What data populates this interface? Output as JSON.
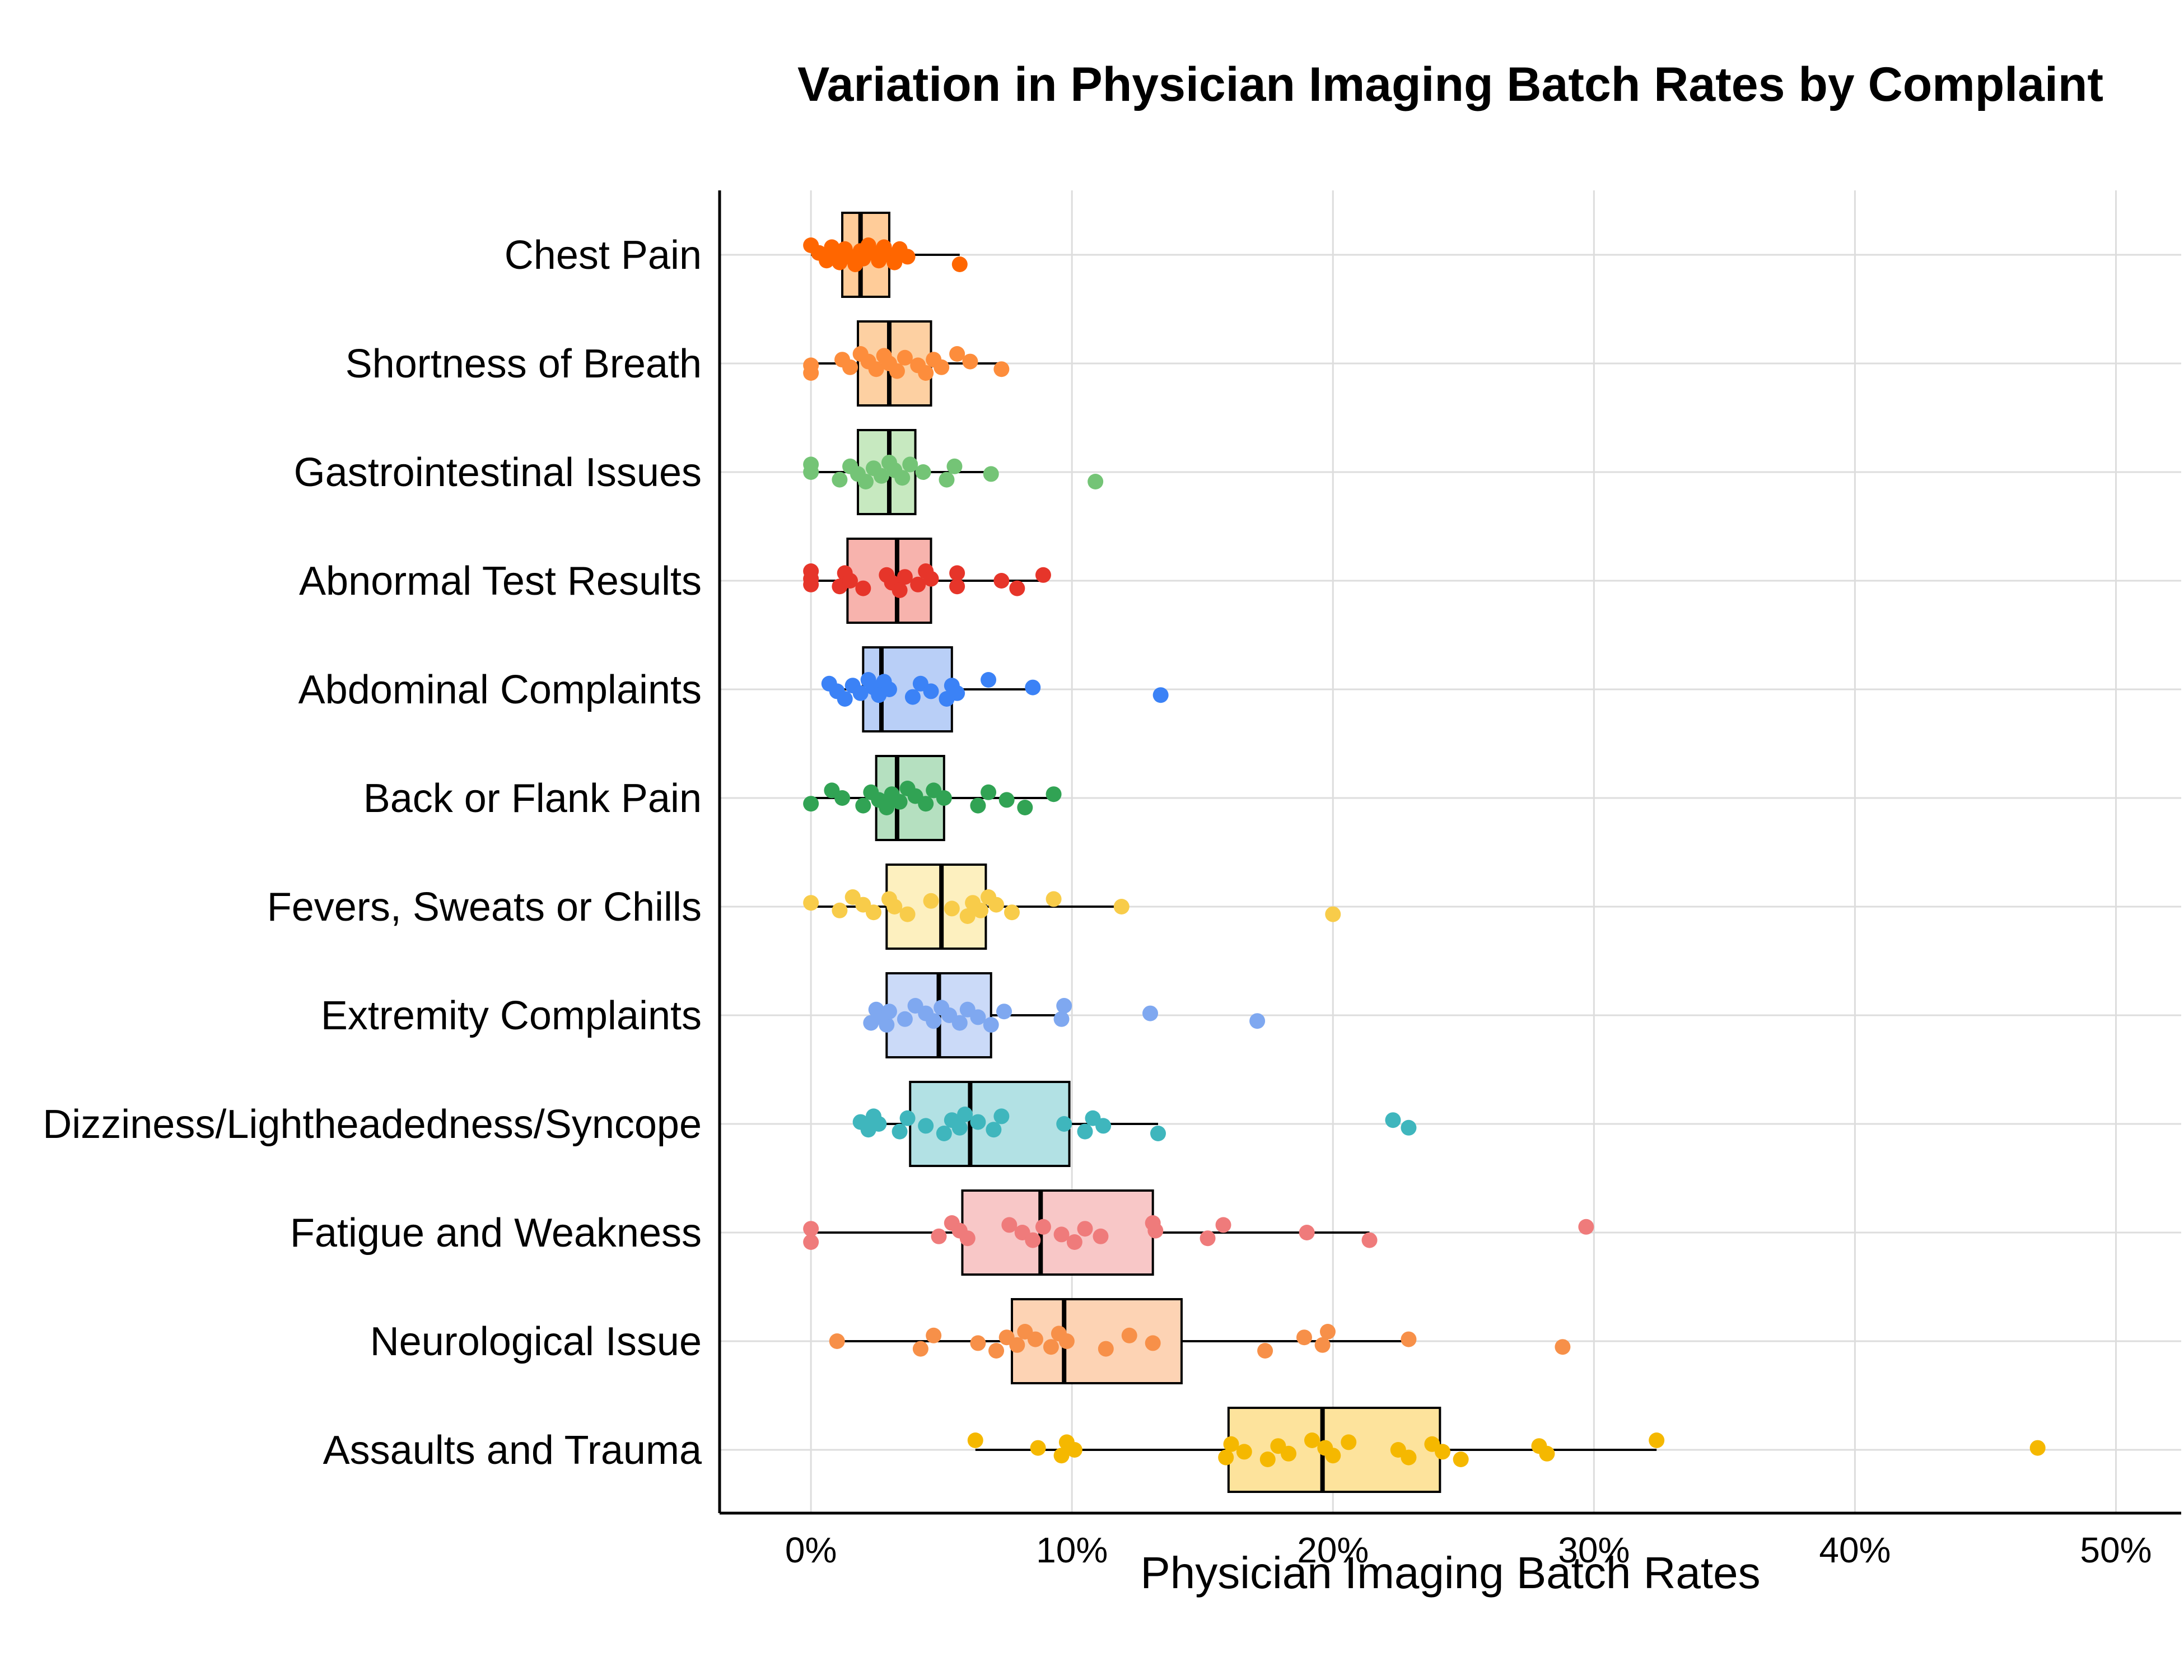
{
  "chart_data": {
    "type": "boxplot",
    "title": "Variation in Physician Imaging Batch Rates by Complaint",
    "xlabel": "Physician Imaging Batch Rates",
    "ylabel": "",
    "xlim": [
      -3.5,
      52.5
    ],
    "x_ticks": [
      0,
      10,
      20,
      30,
      40,
      50
    ],
    "x_tick_labels": [
      "0%",
      "10%",
      "20%",
      "30%",
      "40%",
      "50%"
    ],
    "grid": true,
    "legend": "none",
    "series": [
      {
        "category": "Chest Pain",
        "color": "#ff6600",
        "fill": "#ffcc99",
        "q1": 1.2,
        "median": 1.9,
        "q3": 3.0,
        "whisker_low": 0.0,
        "whisker_high": 5.7,
        "points": [
          0.0,
          0.3,
          0.6,
          0.8,
          1.0,
          1.1,
          1.3,
          1.5,
          1.7,
          1.9,
          2.0,
          2.2,
          2.4,
          2.6,
          2.8,
          3.0,
          3.2,
          3.4,
          3.7,
          5.7
        ]
      },
      {
        "category": "Shortness of Breath",
        "color": "#fd8d3c",
        "fill": "#fdd0a2",
        "q1": 1.8,
        "median": 3.0,
        "q3": 4.6,
        "whisker_low": 0.0,
        "whisker_high": 7.3,
        "points": [
          0.0,
          0.0,
          1.2,
          1.5,
          1.9,
          2.2,
          2.5,
          2.8,
          3.0,
          3.3,
          3.6,
          4.1,
          4.4,
          4.7,
          5.0,
          5.6,
          6.1,
          7.3
        ]
      },
      {
        "category": "Gastrointestinal Issues",
        "color": "#74c476",
        "fill": "#c7e9c0",
        "q1": 1.8,
        "median": 3.0,
        "q3": 4.0,
        "whisker_low": 0.0,
        "whisker_high": 6.9,
        "points": [
          0.0,
          0.0,
          1.1,
          1.5,
          1.8,
          2.1,
          2.4,
          2.7,
          3.0,
          3.2,
          3.5,
          3.8,
          4.3,
          5.2,
          5.5,
          6.9,
          10.9
        ]
      },
      {
        "category": "Abnormal Test Results",
        "color": "#e6352a",
        "fill": "#f7b3ad",
        "q1": 1.4,
        "median": 3.3,
        "q3": 4.6,
        "whisker_low": 0.0,
        "whisker_high": 8.9,
        "points": [
          0.0,
          0.0,
          0.0,
          1.1,
          1.3,
          1.5,
          2.0,
          2.9,
          3.1,
          3.4,
          3.6,
          4.1,
          4.4,
          4.6,
          5.6,
          5.6,
          7.3,
          7.9,
          8.9
        ]
      },
      {
        "category": "Abdominal Complaints",
        "color": "#3b82f6",
        "fill": "#b9cff7",
        "q1": 2.0,
        "median": 2.7,
        "q3": 5.4,
        "whisker_low": 0.7,
        "whisker_high": 8.5,
        "points": [
          0.7,
          1.0,
          1.3,
          1.6,
          1.9,
          2.2,
          2.4,
          2.6,
          2.8,
          3.0,
          3.9,
          4.2,
          4.6,
          5.2,
          5.4,
          5.6,
          6.8,
          8.5,
          13.4
        ]
      },
      {
        "category": "Back or Flank Pain",
        "color": "#31a354",
        "fill": "#b5e0c0",
        "q1": 2.5,
        "median": 3.3,
        "q3": 5.1,
        "whisker_low": 0.0,
        "whisker_high": 9.3,
        "points": [
          0.0,
          0.8,
          1.2,
          2.0,
          2.3,
          2.6,
          2.9,
          3.1,
          3.4,
          3.7,
          4.0,
          4.4,
          4.7,
          5.1,
          6.4,
          6.8,
          7.5,
          8.2,
          9.3
        ]
      },
      {
        "category": "Fevers, Sweats or Chills",
        "color": "#f8cc4a",
        "fill": "#fdf0bf",
        "q1": 2.9,
        "median": 5.0,
        "q3": 6.7,
        "whisker_low": 0.0,
        "whisker_high": 11.9,
        "points": [
          0.0,
          1.1,
          1.6,
          2.0,
          2.4,
          3.0,
          3.2,
          3.7,
          4.6,
          5.4,
          6.0,
          6.2,
          6.5,
          6.8,
          7.1,
          7.7,
          9.3,
          11.9,
          20.0
        ]
      },
      {
        "category": "Extremity Complaints",
        "color": "#7fa8f0",
        "fill": "#cbdaf8",
        "q1": 2.9,
        "median": 4.9,
        "q3": 6.9,
        "whisker_low": 2.3,
        "whisker_high": 9.7,
        "points": [
          2.3,
          2.5,
          2.7,
          2.9,
          3.0,
          3.6,
          4.0,
          4.4,
          4.7,
          5.0,
          5.3,
          5.7,
          6.0,
          6.4,
          6.9,
          7.4,
          9.6,
          9.7,
          13.0,
          17.1
        ]
      },
      {
        "category": "Dizziness/Lightheadedness/Syncope",
        "color": "#3fb6bd",
        "fill": "#b2e1e4",
        "q1": 3.8,
        "median": 6.1,
        "q3": 9.9,
        "whisker_low": 1.9,
        "whisker_high": 13.3,
        "points": [
          1.9,
          2.2,
          2.4,
          2.6,
          3.4,
          3.7,
          4.4,
          5.1,
          5.4,
          5.7,
          5.9,
          6.4,
          7.0,
          7.3,
          9.7,
          10.5,
          10.8,
          11.2,
          13.3,
          22.3,
          22.9
        ]
      },
      {
        "category": "Fatigue and Weakness",
        "color": "#ef7b7b",
        "fill": "#f8c7c7",
        "q1": 5.8,
        "median": 8.8,
        "q3": 13.1,
        "whisker_low": 0.0,
        "whisker_high": 21.4,
        "points": [
          0.0,
          0.0,
          4.9,
          5.4,
          5.7,
          6.0,
          7.6,
          8.1,
          8.5,
          8.9,
          9.6,
          10.1,
          10.5,
          11.1,
          13.1,
          13.2,
          15.2,
          15.8,
          19.0,
          21.4,
          29.7
        ]
      },
      {
        "category": "Neurological Issue",
        "color": "#f79049",
        "fill": "#fdd3b4",
        "q1": 7.7,
        "median": 9.7,
        "q3": 14.2,
        "whisker_low": 1.0,
        "whisker_high": 22.9,
        "points": [
          1.0,
          4.2,
          4.7,
          6.4,
          7.1,
          7.5,
          7.9,
          8.2,
          8.6,
          9.2,
          9.5,
          9.8,
          11.3,
          12.2,
          13.1,
          17.4,
          18.9,
          19.6,
          19.8,
          22.9,
          28.8
        ]
      },
      {
        "category": "Assaults and Trauma",
        "color": "#f5b800",
        "fill": "#fde39c",
        "q1": 16.0,
        "median": 19.6,
        "q3": 24.1,
        "whisker_low": 6.3,
        "whisker_high": 32.4,
        "points": [
          6.3,
          8.7,
          9.6,
          9.8,
          10.1,
          15.9,
          16.1,
          16.6,
          17.5,
          17.9,
          18.3,
          19.2,
          19.7,
          20.0,
          20.6,
          22.5,
          22.9,
          23.8,
          24.2,
          24.9,
          27.9,
          28.2,
          32.4,
          47.0
        ]
      }
    ]
  }
}
